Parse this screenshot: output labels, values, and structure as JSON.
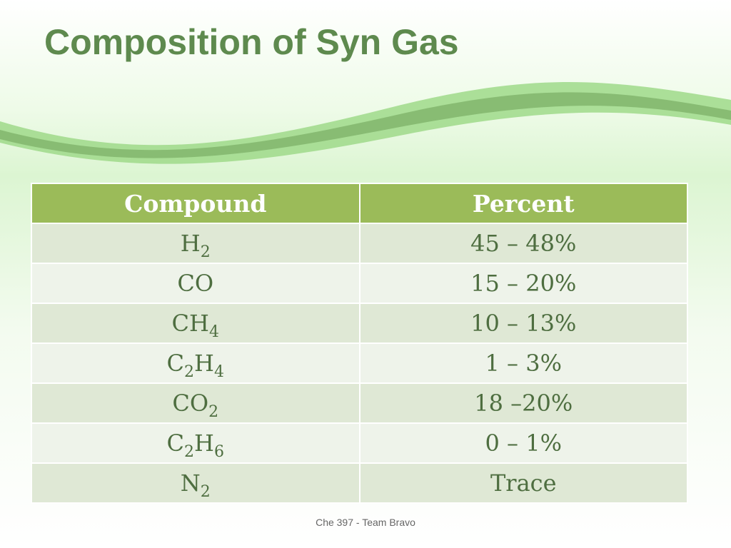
{
  "title": "Composition of Syn Gas",
  "table": {
    "header": [
      "Compound",
      "Percent"
    ],
    "rows": [
      [
        "H2",
        "45 – 48%"
      ],
      [
        "CO",
        "15 – 20%"
      ],
      [
        "CH4",
        "10 – 13%"
      ],
      [
        "C2H4",
        "1 – 3%"
      ],
      [
        "CO2",
        "18 –20%"
      ],
      [
        "C2H6",
        "0 – 1%"
      ],
      [
        "N2",
        "Trace"
      ]
    ]
  },
  "footer": "Che 397 - Team Bravo"
}
